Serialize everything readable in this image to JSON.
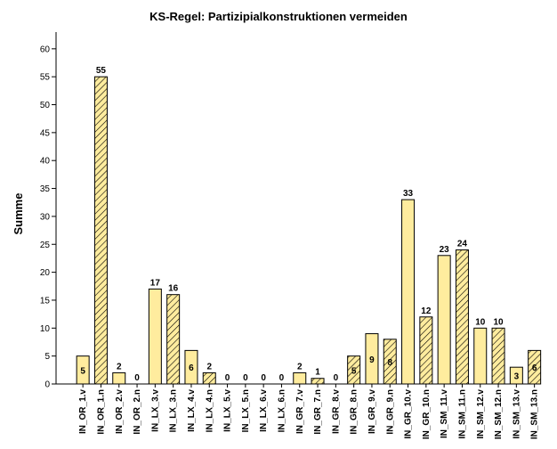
{
  "chart_data": {
    "type": "bar",
    "title": "KS-Regel: Partizipialkonstruktionen vermeiden",
    "xlabel": "",
    "ylabel": "Summe",
    "ylim": [
      0,
      63
    ],
    "yticks": [
      0,
      5,
      10,
      15,
      20,
      25,
      30,
      35,
      40,
      45,
      50,
      55,
      60
    ],
    "grid": false,
    "legend": "none",
    "categories": [
      "IN_OR_1.v",
      "IN_OR_1.n",
      "IN_OR_2.v",
      "IN_OR_2.n",
      "IN_LX_3.v",
      "IN_LX_3.n",
      "IN_LX_4.v",
      "IN_LX_4.n",
      "IN_LX_5.v",
      "IN_LX_5.n",
      "IN_LX_6.v",
      "IN_LX_6.n",
      "IN_GR_7.v",
      "IN_GR_7.n",
      "IN_GR_8.v",
      "IN_GR_8.n",
      "IN_GR_9.v",
      "IN_GR_9.n",
      "IN_GR_10.v",
      "IN_GR_10.n",
      "IN_SM_11.v",
      "IN_SM_11.n",
      "IN_SM_12.v",
      "IN_SM_12.n",
      "IN_SM_13.v",
      "IN_SM_13.n"
    ],
    "values": [
      5,
      55,
      2,
      0,
      17,
      16,
      6,
      2,
      0,
      0,
      0,
      0,
      2,
      1,
      0,
      5,
      9,
      8,
      33,
      12,
      23,
      24,
      10,
      10,
      3,
      6
    ],
    "label_inside": [
      true,
      false,
      false,
      false,
      false,
      false,
      true,
      false,
      false,
      false,
      false,
      false,
      false,
      false,
      false,
      true,
      true,
      true,
      false,
      false,
      false,
      false,
      false,
      false,
      true,
      true
    ],
    "bar_styles": [
      "solid",
      "hatched"
    ],
    "colors": {
      "bar_fill": "#ffec9e",
      "bar_stroke": "#000000",
      "hatch": "#000000",
      "axis": "#000000"
    }
  }
}
